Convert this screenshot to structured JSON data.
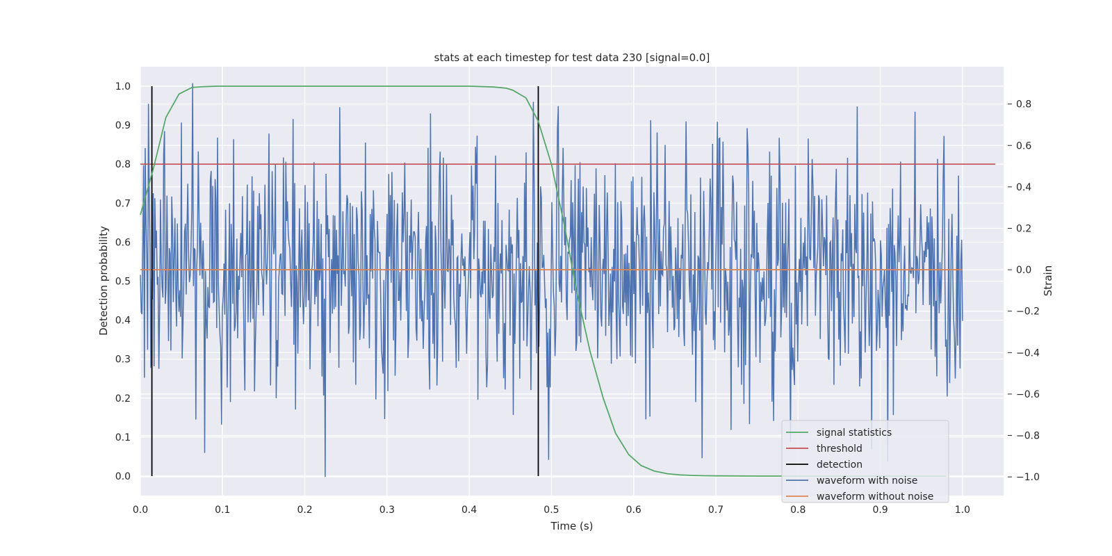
{
  "chart_data": {
    "type": "line",
    "title": "stats at each timestep for test data 230 [signal=0.0]",
    "xlabel": "Time (s)",
    "ylabel": "Detection probability",
    "ylabel_right": "Strain",
    "xlim": [
      0.0,
      1.05
    ],
    "ylim": [
      -0.05,
      1.05
    ],
    "ylim_right": [
      -1.09,
      0.98
    ],
    "x_ticks": [
      "0.0",
      "0.1",
      "0.2",
      "0.3",
      "0.4",
      "0.5",
      "0.6",
      "0.7",
      "0.8",
      "0.9",
      "1.0"
    ],
    "y_ticks": [
      "0.0",
      "0.1",
      "0.2",
      "0.3",
      "0.4",
      "0.5",
      "0.6",
      "0.7",
      "0.8",
      "0.9",
      "1.0"
    ],
    "y_right_ticks": [
      "−1.0",
      "−0.8",
      "−0.6",
      "−0.4",
      "−0.2",
      "0.0",
      "0.2",
      "0.4",
      "0.6",
      "0.8"
    ],
    "grid": true,
    "background": "#EAEAF2",
    "legend_position": "lower right",
    "series": [
      {
        "name": "signal statistics",
        "axis": "left",
        "color": "#55A868",
        "x": [
          0.0,
          0.016,
          0.031,
          0.047,
          0.063,
          0.078,
          0.094,
          0.2,
          0.3,
          0.4,
          0.43,
          0.445,
          0.453,
          0.469,
          0.484,
          0.5,
          0.516,
          0.531,
          0.547,
          0.563,
          0.578,
          0.594,
          0.609,
          0.625,
          0.641,
          0.656,
          0.672,
          0.688,
          0.703,
          0.75,
          0.8,
          0.9,
          0.98
        ],
        "y": [
          0.67,
          0.79,
          0.92,
          0.98,
          0.997,
          0.999,
          1.0,
          1.0,
          1.0,
          1.0,
          0.998,
          0.995,
          0.99,
          0.97,
          0.91,
          0.8,
          0.64,
          0.47,
          0.32,
          0.2,
          0.11,
          0.055,
          0.027,
          0.013,
          0.006,
          0.003,
          0.0015,
          0.0008,
          0.0005,
          0.0,
          0.0,
          0.0,
          0.0
        ]
      },
      {
        "name": "threshold",
        "axis": "left",
        "color": "#C44E52",
        "x": [
          0.0,
          1.04
        ],
        "y": [
          0.8,
          0.8
        ]
      },
      {
        "name": "detection",
        "axis": "left",
        "color": "#000000",
        "x_positions": [
          0.014,
          0.484
        ],
        "y": [
          0.0,
          1.0
        ]
      },
      {
        "name": "waveform with noise",
        "axis": "right",
        "color": "#4C72B0",
        "x_range": [
          0.0,
          1.0
        ],
        "n_points": 1024,
        "values_note": "",
        "approx_range": [
          -1.0,
          0.9
        ]
      },
      {
        "name": "waveform without noise",
        "axis": "right",
        "color": "#DD8452",
        "x": [
          0.0,
          1.0
        ],
        "y": [
          0.0,
          0.0
        ]
      }
    ]
  }
}
